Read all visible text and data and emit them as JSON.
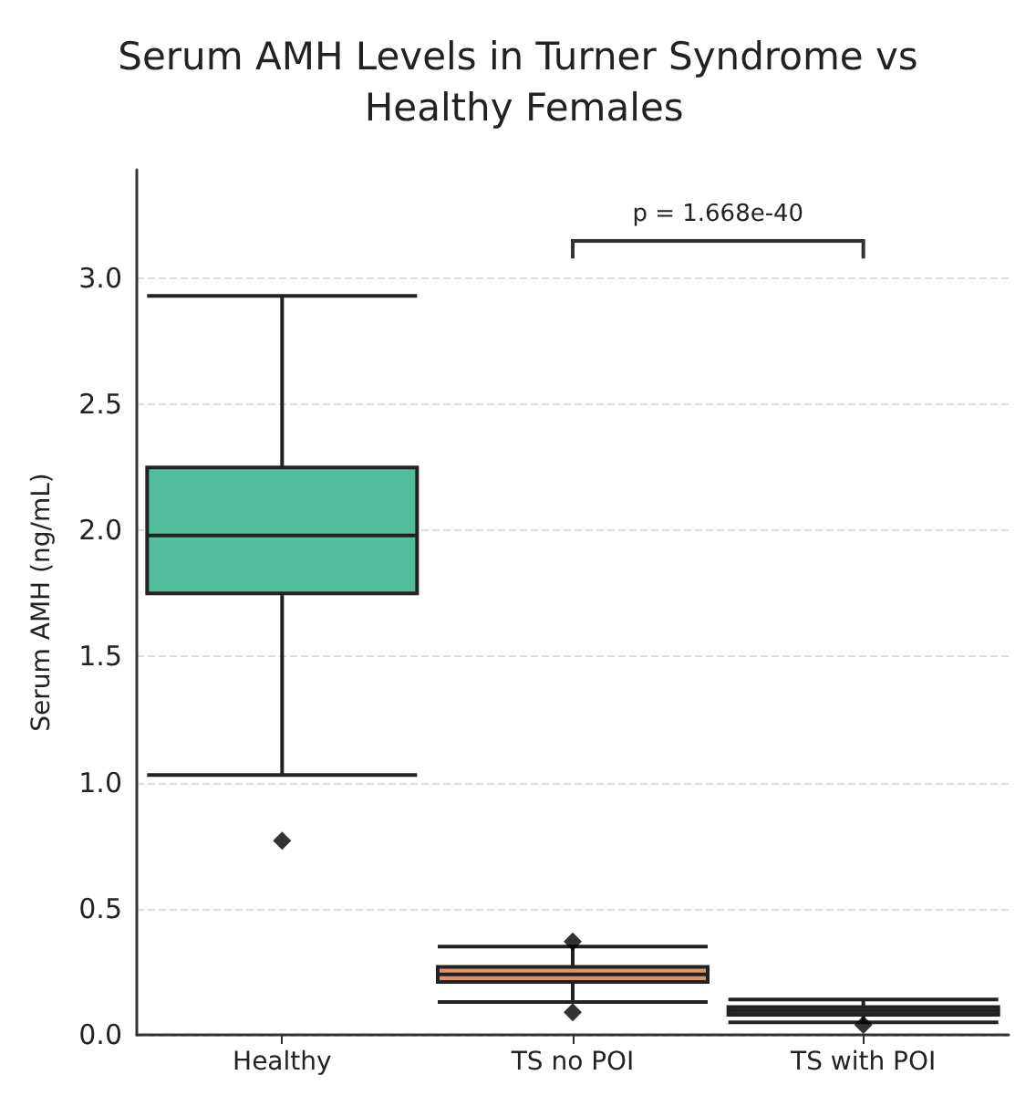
{
  "chart_data": {
    "type": "box",
    "title": "Serum AMH Levels in Turner Syndrome vs Healthy Females",
    "ylabel": "Serum AMH (ng/mL)",
    "categories": [
      "Healthy",
      "TS no POI",
      "TS with POI"
    ],
    "series": [
      {
        "colors": [
          "#52bd9c",
          "#e0906c",
          "#5a5a5a"
        ],
        "boxes": [
          {
            "low": 1.03,
            "q1": 1.75,
            "median": 1.98,
            "q3": 2.25,
            "high": 2.93,
            "outliers": [
              0.77
            ]
          },
          {
            "low": 0.13,
            "q1": 0.21,
            "median": 0.24,
            "q3": 0.27,
            "high": 0.35,
            "outliers": [
              0.37,
              0.09
            ]
          },
          {
            "low": 0.05,
            "q1": 0.08,
            "median": 0.095,
            "q3": 0.11,
            "high": 0.14,
            "outliers": [
              0.04
            ]
          }
        ]
      }
    ],
    "ylim": [
      0,
      3.43
    ],
    "yticks": [
      {
        "value": 0,
        "label": "0.0"
      },
      0.5,
      {
        "value": 1,
        "label": "1.0"
      },
      1.5,
      {
        "value": 2,
        "label": "2.0"
      },
      2.5,
      {
        "value": 3,
        "label": "3.0"
      }
    ],
    "grid": "y",
    "marker": "diamond",
    "annotations": [
      "p = 1.668e-40"
    ]
  }
}
